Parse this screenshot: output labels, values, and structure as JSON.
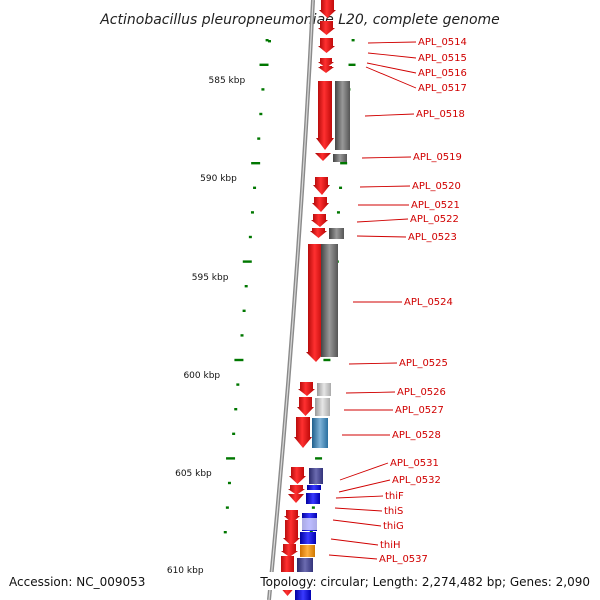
{
  "title": "Actinobacillus pleuropneumoniae L20, complete genome",
  "footer": {
    "accession": "Accession: NC_009053",
    "summary": "Topology: circular; Length: 2,274,482 bp; Genes: 2,090"
  },
  "colors": {
    "forward": "#ff0000",
    "backbone": "#808080",
    "tick": "#007700",
    "label": "#d00000"
  },
  "scale": [
    "585 kbp",
    "590 kbp",
    "595 kbp",
    "600 kbp",
    "605 kbp",
    "610 kbp"
  ],
  "genes": [
    "APL_0514",
    "APL_0515",
    "APL_0516",
    "APL_0517",
    "APL_0518",
    "APL_0519",
    "APL_0520",
    "APL_0521",
    "APL_0522",
    "APL_0523",
    "APL_0524",
    "APL_0525",
    "APL_0526",
    "APL_0527",
    "APL_0528",
    "APL_0531",
    "APL_0532",
    "thiF",
    "thiS",
    "thiG",
    "thiH",
    "APL_0537"
  ]
}
